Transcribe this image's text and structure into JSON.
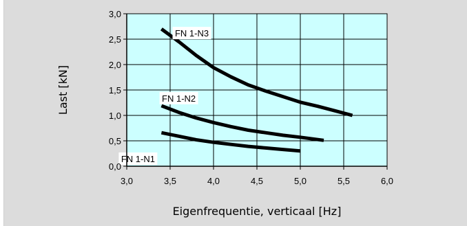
{
  "chart_data": {
    "type": "line",
    "title": "",
    "xlabel": "Eigenfrequentie, verticaal [Hz]",
    "ylabel": "Last [kN]",
    "xlim": [
      3.0,
      6.0
    ],
    "ylim": [
      0.0,
      3.0
    ],
    "x_ticks": [
      "3,0",
      "3,5",
      "4,0",
      "4,5",
      "5,0",
      "5,5",
      "6,0"
    ],
    "y_ticks": [
      "0,0",
      "0,5",
      "1,0",
      "1,5",
      "2,0",
      "2,5",
      "3,0"
    ],
    "grid": true,
    "plot_background": "#ccffff",
    "line_color": "#000000",
    "series": [
      {
        "name": "FN 1-N1",
        "x": [
          3.4,
          3.6,
          3.8,
          4.0,
          4.2,
          4.4,
          4.6,
          4.8,
          5.0
        ],
        "y": [
          0.66,
          0.59,
          0.52,
          0.47,
          0.43,
          0.39,
          0.36,
          0.33,
          0.3
        ]
      },
      {
        "name": "FN 1-N2",
        "x": [
          3.4,
          3.6,
          3.8,
          4.0,
          4.2,
          4.4,
          4.6,
          4.8,
          5.0,
          5.27
        ],
        "y": [
          1.19,
          1.06,
          0.95,
          0.86,
          0.78,
          0.71,
          0.66,
          0.61,
          0.57,
          0.51
        ]
      },
      {
        "name": "FN 1-N3",
        "x": [
          3.4,
          3.6,
          3.8,
          4.0,
          4.2,
          4.4,
          4.6,
          4.8,
          5.0,
          5.2,
          5.4,
          5.6
        ],
        "y": [
          2.7,
          2.45,
          2.18,
          1.94,
          1.76,
          1.6,
          1.48,
          1.37,
          1.26,
          1.18,
          1.09,
          1.0
        ]
      }
    ]
  }
}
